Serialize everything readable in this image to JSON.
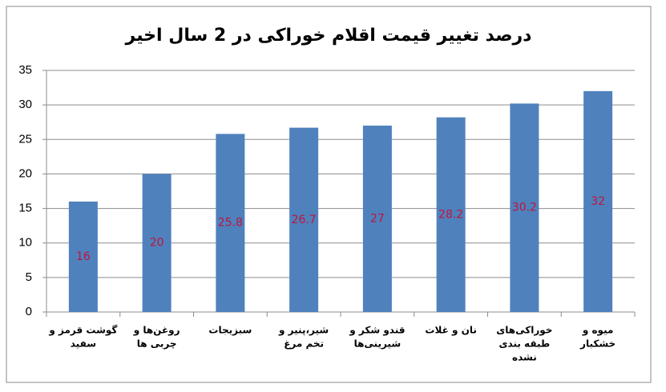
{
  "chart_data": {
    "type": "bar",
    "title": "درصد تغییر قیمت اقلام خوراکی در 2 سال اخیر",
    "categories": [
      [
        "گوشت قرمز و",
        "سفید"
      ],
      [
        "روغن‌ها و",
        "چربی ها"
      ],
      [
        "سبزیجات"
      ],
      [
        "شیر،پنیر و",
        "تخم مرغ"
      ],
      [
        "قندو شکر و",
        "شیرینی‌ها"
      ],
      [
        "نان و غلات"
      ],
      [
        "خوراکی‌های",
        "طبقه بندی",
        "نشده"
      ],
      [
        "میوه و",
        "خشکبار"
      ]
    ],
    "values": [
      16,
      20,
      25.8,
      26.7,
      27,
      28.2,
      30.2,
      32
    ],
    "color": "#4f81bd",
    "label_color": "#c0143c",
    "ylim": [
      0,
      35
    ],
    "yticks": [
      0,
      5,
      10,
      15,
      20,
      25,
      30,
      35
    ],
    "grid": true
  }
}
